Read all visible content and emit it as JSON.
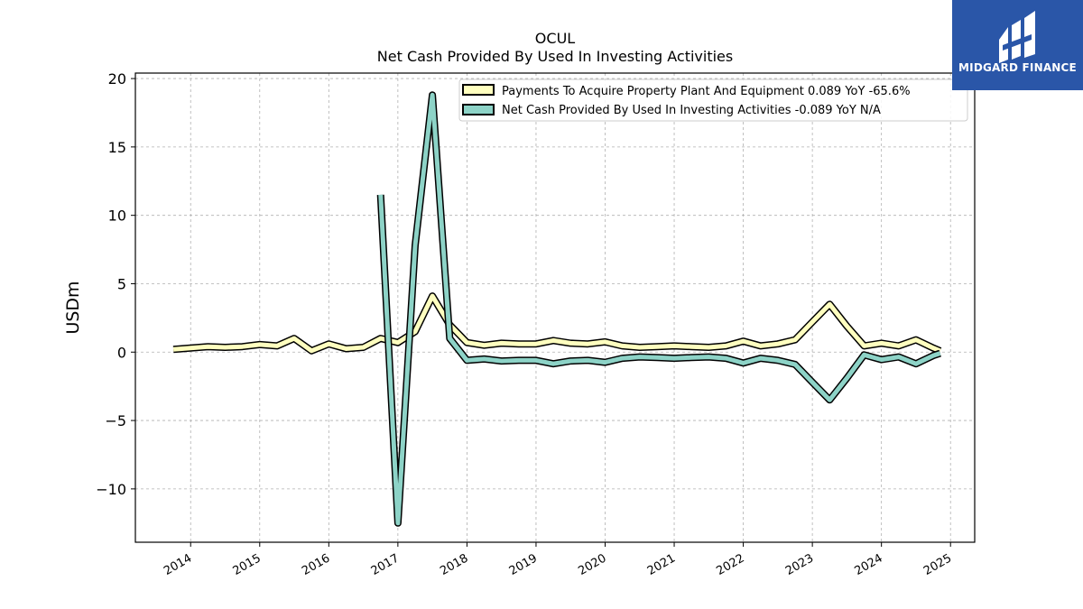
{
  "brand": {
    "name": "MIDGARD FINANCE",
    "color": "#2a56a8"
  },
  "chart_data": {
    "type": "line",
    "title": "OCUL",
    "subtitle": "Net Cash Provided By Used In Investing Activities",
    "xlabel": "",
    "ylabel": "USDm",
    "xlim": [
      2013.2,
      2025.35
    ],
    "ylim": [
      -13.9,
      20.4
    ],
    "grid": true,
    "legend_position": "top-right",
    "x_ticks": [
      2014,
      2015,
      2016,
      2017,
      2018,
      2019,
      2020,
      2021,
      2022,
      2023,
      2024,
      2025
    ],
    "x_tick_labels": [
      "2014",
      "2015",
      "2016",
      "2017",
      "2018",
      "2019",
      "2020",
      "2021",
      "2022",
      "2023",
      "2024",
      "2025"
    ],
    "y_ticks": [
      -10,
      -5,
      0,
      5,
      10,
      15,
      20
    ],
    "y_tick_labels": [
      "−10",
      "−5",
      "0",
      "5",
      "10",
      "15",
      "20"
    ],
    "series": [
      {
        "name": "Payments To Acquire Property Plant And Equipment  0.089 YoY -65.6%",
        "color": "#ffffbf",
        "points": [
          [
            2013.75,
            0.2
          ],
          [
            2014.0,
            0.3
          ],
          [
            2014.25,
            0.4
          ],
          [
            2014.5,
            0.35
          ],
          [
            2014.75,
            0.4
          ],
          [
            2015.0,
            0.55
          ],
          [
            2015.25,
            0.45
          ],
          [
            2015.5,
            1.0
          ],
          [
            2015.75,
            0.1
          ],
          [
            2016.0,
            0.6
          ],
          [
            2016.25,
            0.25
          ],
          [
            2016.5,
            0.35
          ],
          [
            2016.75,
            1.0
          ],
          [
            2017.0,
            0.7
          ],
          [
            2017.25,
            1.5
          ],
          [
            2017.5,
            4.1
          ],
          [
            2017.75,
            2.0
          ],
          [
            2018.0,
            0.7
          ],
          [
            2018.25,
            0.5
          ],
          [
            2018.5,
            0.65
          ],
          [
            2018.75,
            0.6
          ],
          [
            2019.0,
            0.6
          ],
          [
            2019.25,
            0.85
          ],
          [
            2019.5,
            0.65
          ],
          [
            2019.75,
            0.6
          ],
          [
            2020.0,
            0.75
          ],
          [
            2020.25,
            0.45
          ],
          [
            2020.5,
            0.35
          ],
          [
            2020.75,
            0.4
          ],
          [
            2021.0,
            0.45
          ],
          [
            2021.25,
            0.4
          ],
          [
            2021.5,
            0.35
          ],
          [
            2021.75,
            0.45
          ],
          [
            2022.0,
            0.8
          ],
          [
            2022.25,
            0.45
          ],
          [
            2022.5,
            0.6
          ],
          [
            2022.75,
            0.9
          ],
          [
            2023.0,
            2.2
          ],
          [
            2023.25,
            3.5
          ],
          [
            2023.5,
            1.9
          ],
          [
            2023.75,
            0.45
          ],
          [
            2024.0,
            0.65
          ],
          [
            2024.25,
            0.45
          ],
          [
            2024.5,
            0.9
          ],
          [
            2024.75,
            0.3
          ],
          [
            2024.85,
            0.09
          ]
        ]
      },
      {
        "name": "Net Cash Provided By Used In Investing Activities  -0.089 YoY N/A",
        "color": "#8dd3c7",
        "points": [
          [
            2016.75,
            11.5
          ],
          [
            2017.0,
            -12.5
          ],
          [
            2017.25,
            7.8
          ],
          [
            2017.5,
            18.8
          ],
          [
            2017.75,
            1.0
          ],
          [
            2018.0,
            -0.6
          ],
          [
            2018.25,
            -0.5
          ],
          [
            2018.5,
            -0.65
          ],
          [
            2018.75,
            -0.6
          ],
          [
            2019.0,
            -0.6
          ],
          [
            2019.25,
            -0.85
          ],
          [
            2019.5,
            -0.65
          ],
          [
            2019.75,
            -0.6
          ],
          [
            2020.0,
            -0.75
          ],
          [
            2020.25,
            -0.45
          ],
          [
            2020.5,
            -0.35
          ],
          [
            2020.75,
            -0.4
          ],
          [
            2021.0,
            -0.45
          ],
          [
            2021.25,
            -0.4
          ],
          [
            2021.5,
            -0.35
          ],
          [
            2021.75,
            -0.45
          ],
          [
            2022.0,
            -0.8
          ],
          [
            2022.25,
            -0.45
          ],
          [
            2022.5,
            -0.6
          ],
          [
            2022.75,
            -0.9
          ],
          [
            2023.0,
            -2.2
          ],
          [
            2023.25,
            -3.5
          ],
          [
            2023.5,
            -1.9
          ],
          [
            2023.75,
            -0.2
          ],
          [
            2024.0,
            -0.55
          ],
          [
            2024.25,
            -0.35
          ],
          [
            2024.5,
            -0.85
          ],
          [
            2024.75,
            -0.25
          ],
          [
            2024.85,
            -0.089
          ]
        ]
      }
    ]
  }
}
